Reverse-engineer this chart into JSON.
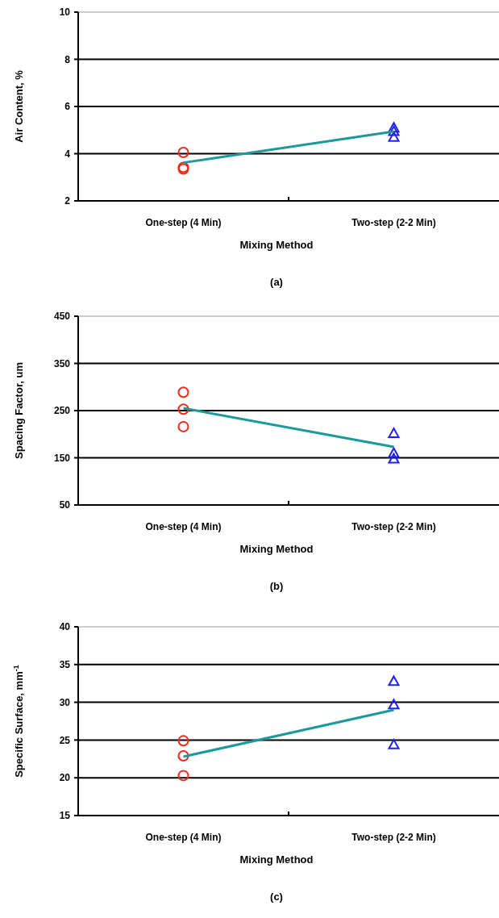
{
  "chart_data": [
    {
      "type": "scatter",
      "title": "(a)",
      "xlabel": "Mixing Method",
      "ylabel": "Air Content, %",
      "categories": [
        "One-step (4 Min)",
        "Two-step (2-2 Min)"
      ],
      "ylim": [
        2,
        10
      ],
      "yticks": [
        2,
        4,
        6,
        8,
        10
      ],
      "grid": "y",
      "series": [
        {
          "marker": "circle",
          "color": "#ee2a1a",
          "x": [
            "One-step (4 Min)",
            "One-step (4 Min)",
            "One-step (4 Min)"
          ],
          "values": [
            4.05,
            3.42,
            3.35
          ]
        },
        {
          "marker": "triangle",
          "color": "#2020ee",
          "x": [
            "Two-step (2-2 Min)",
            "Two-step (2-2 Min)",
            "Two-step (2-2 Min)"
          ],
          "values": [
            5.1,
            4.95,
            4.7
          ]
        },
        {
          "type": "line",
          "marker": "none",
          "color": "#1a9a9a",
          "values": [
            3.62,
            4.94
          ]
        }
      ]
    },
    {
      "type": "scatter",
      "title": "(b)",
      "xlabel": "Mixing Method",
      "ylabel": "Spacing Factor, um",
      "categories": [
        "One-step (4 Min)",
        "Two-step (2-2 Min)"
      ],
      "ylim": [
        50,
        450
      ],
      "yticks": [
        50,
        150,
        250,
        350,
        450
      ],
      "grid": "y",
      "series": [
        {
          "marker": "circle",
          "color": "#ee2a1a",
          "x": [
            "One-step (4 Min)",
            "One-step (4 Min)",
            "One-step (4 Min)"
          ],
          "values": [
            289,
            253,
            216
          ]
        },
        {
          "marker": "triangle",
          "color": "#2020ee",
          "x": [
            "Two-step (2-2 Min)",
            "Two-step (2-2 Min)",
            "Two-step (2-2 Min)"
          ],
          "values": [
            202,
            160,
            148
          ]
        },
        {
          "type": "line",
          "marker": "none",
          "color": "#1a9a9a",
          "values": [
            255,
            173
          ]
        }
      ]
    },
    {
      "type": "scatter",
      "title": "(c)",
      "xlabel": "Mixing Method",
      "ylabel": "Specific Surface, mm$^{-1}$",
      "categories": [
        "One-step (4 Min)",
        "Two-step (2-2 Min)"
      ],
      "ylim": [
        15,
        40
      ],
      "yticks": [
        15,
        20,
        25,
        30,
        35,
        40
      ],
      "grid": "y",
      "series": [
        {
          "marker": "circle",
          "color": "#ee2a1a",
          "x": [
            "One-step (4 Min)",
            "One-step (4 Min)",
            "One-step (4 Min)"
          ],
          "values": [
            24.9,
            22.9,
            20.3
          ]
        },
        {
          "marker": "triangle",
          "color": "#2020ee",
          "x": [
            "Two-step (2-2 Min)",
            "Two-step (2-2 Min)",
            "Two-step (2-2 Min)"
          ],
          "values": [
            32.8,
            29.7,
            24.4
          ]
        },
        {
          "type": "line",
          "marker": "none",
          "color": "#1a9a9a",
          "values": [
            22.8,
            29.0
          ]
        }
      ]
    }
  ]
}
